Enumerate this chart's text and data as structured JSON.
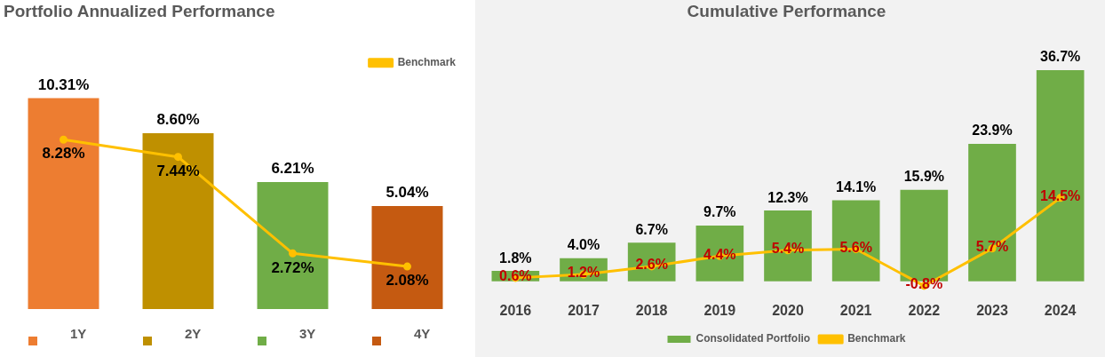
{
  "chart_data": [
    {
      "type": "bar",
      "title": "Portfolio Annualized Performance",
      "categories": [
        "1Y",
        "2Y",
        "3Y",
        "4Y"
      ],
      "legend": "top right",
      "marker": "circle",
      "series": [
        {
          "colors": [
            "#ed7d31",
            "#bf9000",
            "#70ad47",
            "#c55a11"
          ],
          "values": [
            10.31,
            8.6,
            6.21,
            5.04
          ],
          "value_labels": [
            "10.31%",
            "8.60%",
            "6.21%",
            "5.04%"
          ]
        },
        {
          "type": "line",
          "name": "Benchmark",
          "color": "#ffc000",
          "values": [
            8.28,
            7.44,
            2.72,
            2.08
          ],
          "value_labels": [
            "8.28%",
            "7.44%",
            "2.72%",
            "2.08%"
          ]
        }
      ]
    },
    {
      "type": "bar",
      "title": "Cumulative Performance",
      "categories": [
        "2016",
        "2017",
        "2018",
        "2019",
        "2020",
        "2021",
        "2022",
        "2023",
        "2024"
      ],
      "legend": "bottom",
      "marker": "circle",
      "series": [
        {
          "name": "Consolidated Portfolio",
          "color": "#70ad47",
          "values": [
            1.8,
            4.0,
            6.7,
            9.7,
            12.3,
            14.1,
            15.9,
            23.9,
            36.7
          ],
          "value_labels": [
            "1.8%",
            "4.0%",
            "6.7%",
            "9.7%",
            "12.3%",
            "14.1%",
            "15.9%",
            "23.9%",
            "36.7%"
          ]
        },
        {
          "type": "line",
          "name": "Benchmark",
          "color": "#ffc000",
          "values": [
            0.6,
            1.2,
            2.6,
            4.4,
            5.4,
            5.6,
            -0.8,
            5.7,
            14.5
          ],
          "value_labels": [
            "0.6%",
            "1.2%",
            "2.6%",
            "4.4%",
            "5.4%",
            "5.6%",
            "-0.8%",
            "5.7%",
            "14.5%"
          ]
        }
      ]
    }
  ]
}
